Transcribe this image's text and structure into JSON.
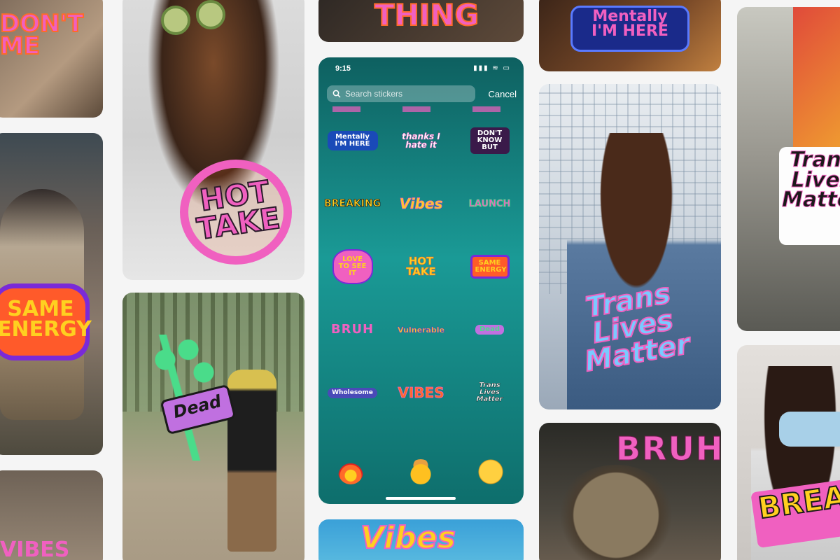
{
  "colors": {
    "page_bg": "#f5f5f5",
    "pink": "#f060c0",
    "orange": "#ff6a2a",
    "yellow": "#ffd020",
    "navy": "#1a2a8a",
    "teal": "#1a9a96"
  },
  "tiles": {
    "c1a": {
      "sticker": "DON'T\nME"
    },
    "c1b": {
      "sticker": "SAME\nENERGY"
    },
    "c1c": {
      "sticker": "VIBES"
    },
    "c2a": {
      "sticker": "HOT\nTAKE"
    },
    "c2b": {
      "sticker": "Dead"
    },
    "c3a": {
      "sticker": "THING"
    },
    "c3c": {
      "sticker": "Vibes"
    },
    "c4a": {
      "sticker": "Mentally\nI'M HERE"
    },
    "c4b": {
      "sticker": "Trans\nLives\nMatter"
    },
    "c4c": {
      "sticker": "BRUH"
    },
    "c5a": {
      "sticker": "Trans\nLives\nMatter"
    },
    "c5b": {
      "sticker": "BREA"
    }
  },
  "phone": {
    "time": "9:15",
    "status_icons": "▮▮▮ ≋ ▭",
    "search_placeholder": "Search stickers",
    "cancel_label": "Cancel",
    "stickers": [
      [
        "Mentally I'M HERE",
        "thanks I hate it",
        "DON'T KNOW BUT"
      ],
      [
        "BREAKING",
        "Vibes",
        "LAUNCH"
      ],
      [
        "LOVE TO SEE IT",
        "HOT TAKE",
        "SAME ENERGY"
      ],
      [
        "BRUH",
        "Vulnerable",
        "Dead"
      ],
      [
        "Wholesome",
        "VIBES",
        "Trans Lives Matter"
      ]
    ],
    "emoji": [
      "fire-emoji",
      "mind-blown-emoji",
      "eye-roll-emoji"
    ]
  }
}
